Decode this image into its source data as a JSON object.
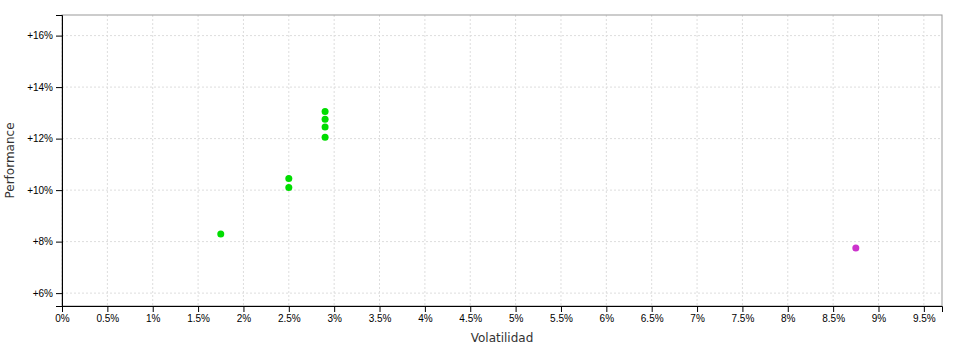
{
  "chart_data": {
    "type": "scatter",
    "x_label": "Volatilidad",
    "y_label": "Performance",
    "xlim": [
      0.0,
      0.097
    ],
    "ylim": [
      0.055,
      0.168
    ],
    "xticks": [
      {
        "value": 0.0,
        "label": "0%"
      },
      {
        "value": 0.005,
        "label": "0.5%"
      },
      {
        "value": 0.01,
        "label": "1%"
      },
      {
        "value": 0.015,
        "label": "1.5%"
      },
      {
        "value": 0.02,
        "label": "2%"
      },
      {
        "value": 0.025,
        "label": "2.5%"
      },
      {
        "value": 0.03,
        "label": "3%"
      },
      {
        "value": 0.035,
        "label": "3.5%"
      },
      {
        "value": 0.04,
        "label": "4%"
      },
      {
        "value": 0.045,
        "label": "4.5%"
      },
      {
        "value": 0.05,
        "label": "5%"
      },
      {
        "value": 0.055,
        "label": "5.5%"
      },
      {
        "value": 0.06,
        "label": "6%"
      },
      {
        "value": 0.065,
        "label": "6.5%"
      },
      {
        "value": 0.07,
        "label": "7%"
      },
      {
        "value": 0.075,
        "label": "7.5%"
      },
      {
        "value": 0.08,
        "label": "8%"
      },
      {
        "value": 0.085,
        "label": "8.5%"
      },
      {
        "value": 0.09,
        "label": "9%"
      },
      {
        "value": 0.095,
        "label": "9.5%"
      }
    ],
    "yticks": [
      {
        "value": 0.06,
        "label": "+6%"
      },
      {
        "value": 0.08,
        "label": "+8%"
      },
      {
        "value": 0.1,
        "label": "+10%"
      },
      {
        "value": 0.12,
        "label": "+12%"
      },
      {
        "value": 0.14,
        "label": "+14%"
      },
      {
        "value": 0.16,
        "label": "+16%"
      }
    ],
    "grid": true,
    "series": [
      {
        "color": "#00dd00",
        "x": [
          0.0175,
          0.025,
          0.025,
          0.029,
          0.029,
          0.029,
          0.029
        ],
        "values": [
          0.083,
          0.1045,
          0.101,
          0.1305,
          0.1275,
          0.1245,
          0.1205
        ]
      },
      {
        "color": "#cc33cc",
        "x": [
          0.0875
        ],
        "values": [
          0.0775
        ]
      }
    ]
  }
}
